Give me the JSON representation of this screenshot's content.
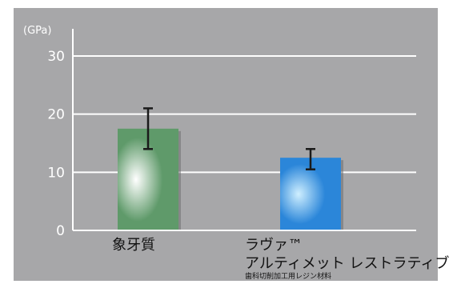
{
  "chart_data": {
    "type": "bar",
    "unit_label": "(GPa)",
    "ylim": [
      0,
      30
    ],
    "yticks": [
      "0",
      "10",
      "20",
      "30"
    ],
    "grid": true,
    "categories": [
      {
        "label": "象牙質",
        "lines": [
          "象牙質"
        ],
        "sublabel": "",
        "value": 17.5,
        "error_low": 14,
        "error_high": 21,
        "color": "#5f9a6a",
        "highlight": "#ffffff"
      },
      {
        "label": "ラヴァ™ アルティメット レストラティブ",
        "lines": [
          "ラヴァ™",
          "アルティメット レストラティブ"
        ],
        "sublabel": "歯科切削加工用レジン材料",
        "value": 12.5,
        "error_low": 10.5,
        "error_high": 14,
        "color": "#2b86d9",
        "highlight": "#cfefff"
      }
    ]
  },
  "colors": {
    "panel_bg": "#a7a7a9",
    "plot_bg": "#a7a7a9",
    "gridline": "#ffffff",
    "axis": "#ffffff",
    "error_bar": "#1a1a1a",
    "tick_text": "#ffffff"
  }
}
